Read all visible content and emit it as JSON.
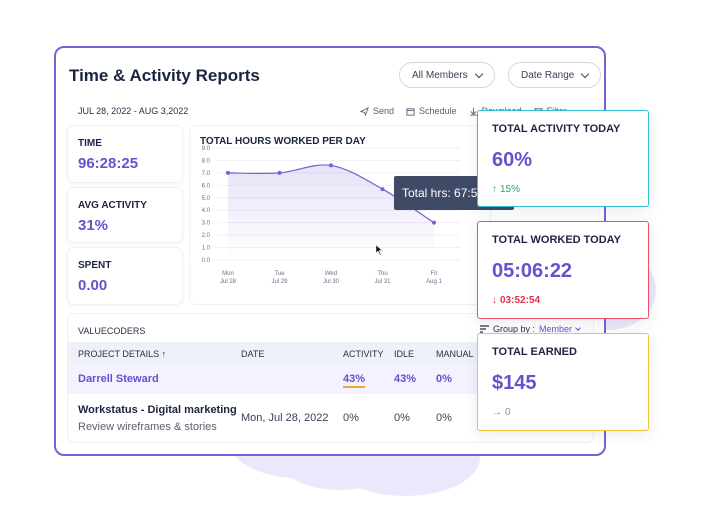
{
  "header": {
    "title": "Time & Activity Reports",
    "members_dropdown": "All Members",
    "date_range_dropdown": "Date Range",
    "date_range": "JUL 28, 2022 - AUG 3,2022",
    "actions": [
      "Send",
      "Schedule",
      "Download",
      "Filter"
    ]
  },
  "stats": [
    {
      "label": "TIME",
      "value": "96:28:25"
    },
    {
      "label": "AVG ACTIVITY",
      "value": "31%"
    },
    {
      "label": "SPENT",
      "value": "0.00"
    }
  ],
  "chart_data": {
    "type": "line",
    "title": "TOTAL HOURS WORKED PER DAY",
    "ylim": [
      0,
      9
    ],
    "yticks": [
      "9.0",
      "8.0",
      "7.0",
      "6.0",
      "5.0",
      "4.0",
      "3.0",
      "2.0",
      "1.0",
      "0.0"
    ],
    "x": [
      {
        "day": "Mon",
        "date": "Jul 28"
      },
      {
        "day": "Tue",
        "date": "Jul 29"
      },
      {
        "day": "Wed",
        "date": "Jul 30"
      },
      {
        "day": "Thu",
        "date": "Jul 31"
      },
      {
        "day": "Fri",
        "date": "Aug 1"
      }
    ],
    "values": [
      7.0,
      7.0,
      7.6,
      5.7,
      3.0
    ],
    "tooltip": "Total hrs: 67:5",
    "grid": true
  },
  "table": {
    "company": "VALUECODERS",
    "group_by_label": "Group by :",
    "group_by_value": "Member",
    "headers": [
      "PROJECT DETAILS ↑",
      "DATE",
      "ACTIVITY",
      "IDLE",
      "MANUAL"
    ],
    "rows": [
      {
        "name": "Darrell Steward",
        "date": "",
        "activity": "43%",
        "idle": "43%",
        "manual": "0%"
      },
      {
        "name": "Workstatus - Digital marketing",
        "sub": "Review wireframes & stories",
        "date": "Mon, Jul 28, 2022",
        "activity": "0%",
        "idle": "0%",
        "manual": "0%"
      }
    ]
  },
  "cards": [
    {
      "label": "TOTAL ACTIVITY TODAY",
      "value": "60%",
      "delta": "15%",
      "delta_dir": "up",
      "border": "#3bbdd1",
      "delta_color": "#2fa55d"
    },
    {
      "label": "TOTAL WORKED TODAY",
      "value": "05:06:22",
      "delta": "03:52:54",
      "delta_dir": "down",
      "border": "#e8526a",
      "delta_color": "#e0344b"
    },
    {
      "label": "TOTAL EARNED",
      "value": "$145",
      "delta": "0",
      "delta_dir": "flat",
      "border": "#f2c23e",
      "delta_color": "#8a90a3"
    }
  ],
  "colors": {
    "accent": "#6a4fcf",
    "window_border": "#7a5fd6"
  }
}
